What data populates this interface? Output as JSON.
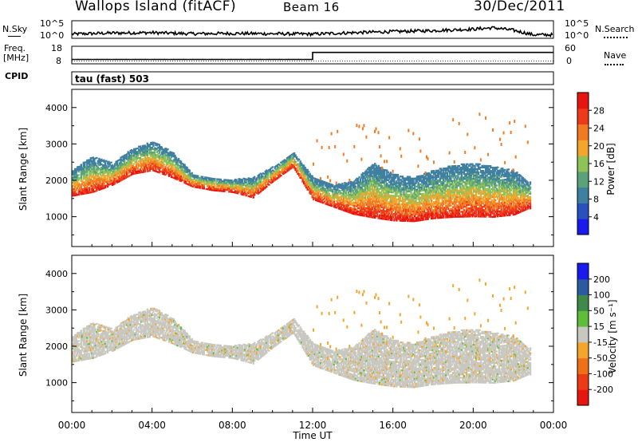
{
  "header": {
    "station": "Wallops Island (fitACF)",
    "beam": "Beam 16",
    "date": "30/Dec/2011"
  },
  "top_panels": {
    "nsky_label": "N.Sky",
    "nsky_ticks": [
      "10^5",
      "10^0"
    ],
    "nsearch_label": "N.Search",
    "nsearch_ticks": [
      "10^5",
      "10^0"
    ],
    "freq_label_1": "Freq.",
    "freq_label_2": "[MHz]",
    "freq_ticks": [
      "18",
      "8"
    ],
    "nave_label": "Nave",
    "nave_ticks": [
      "60",
      "0"
    ],
    "cpid_label": "CPID",
    "cpid_value": "tau (fast) 503"
  },
  "colors": {
    "power_scale": [
      "#1a1aee",
      "#2a4fbf",
      "#3f7fa0",
      "#5aa37a",
      "#8fc257",
      "#f3a52c",
      "#f27a22",
      "#ee3a1a",
      "#e8140f"
    ],
    "velocity_scale": [
      "#1a1aee",
      "#2c5aa0",
      "#3f8a4a",
      "#5fbd3a",
      "#c8c8c0",
      "#f3a52c",
      "#f07018",
      "#ec3a14",
      "#e8140f"
    ]
  },
  "chart_data": [
    {
      "type": "heatmap",
      "panel": "power",
      "ylabel": "Slant Range [km]",
      "yticks": [
        "1000",
        "2000",
        "3000",
        "4000"
      ],
      "ylim": [
        180,
        4500
      ],
      "xlim": [
        0,
        24
      ],
      "colorbar_label": "Power [dB]",
      "colorbar_ticks": [
        "4",
        "8",
        "12",
        "16",
        "20",
        "24",
        "28"
      ],
      "colorbar_range": [
        0,
        32
      ],
      "echo_band_lower_km": [
        [
          0,
          1600
        ],
        [
          1,
          1700
        ],
        [
          2,
          1900
        ],
        [
          3,
          2200
        ],
        [
          4,
          2300
        ],
        [
          5,
          2100
        ],
        [
          6,
          1850
        ],
        [
          7,
          1750
        ],
        [
          8,
          1700
        ],
        [
          9,
          1550
        ],
        [
          10,
          2000
        ],
        [
          11,
          2400
        ],
        [
          12,
          1500
        ],
        [
          13,
          1300
        ],
        [
          14,
          1100
        ],
        [
          15,
          1000
        ],
        [
          16,
          920
        ],
        [
          17,
          900
        ],
        [
          18,
          980
        ],
        [
          19,
          1020
        ],
        [
          20,
          1030
        ],
        [
          21,
          1020
        ],
        [
          22,
          1080
        ],
        [
          22.7,
          1250
        ]
      ],
      "echo_band_upper_km": [
        [
          0,
          2300
        ],
        [
          1,
          2700
        ],
        [
          2,
          2500
        ],
        [
          3,
          2900
        ],
        [
          4,
          3100
        ],
        [
          5,
          2800
        ],
        [
          6,
          2200
        ],
        [
          7,
          2100
        ],
        [
          8,
          2050
        ],
        [
          9,
          2100
        ],
        [
          10,
          2400
        ],
        [
          11,
          2800
        ],
        [
          12,
          2100
        ],
        [
          13,
          1900
        ],
        [
          14,
          2000
        ],
        [
          15,
          2500
        ],
        [
          16,
          2200
        ],
        [
          17,
          2100
        ],
        [
          18,
          2300
        ],
        [
          19,
          2450
        ],
        [
          20,
          2500
        ],
        [
          21,
          2400
        ],
        [
          22,
          2300
        ],
        [
          22.7,
          2000
        ]
      ]
    },
    {
      "type": "heatmap",
      "panel": "velocity",
      "ylabel": "Slant Range [km]",
      "yticks": [
        "1000",
        "2000",
        "3000",
        "4000"
      ],
      "ylim": [
        180,
        4500
      ],
      "xlim": [
        0,
        24
      ],
      "xlabel": "Time UT",
      "xticks": [
        "00:00",
        "04:00",
        "08:00",
        "12:00",
        "16:00",
        "20:00",
        "00:00"
      ],
      "colorbar_label": "Velocity [m s⁻¹]",
      "colorbar_ticks": [
        "200",
        "100",
        "50",
        "15",
        "-15",
        "-50",
        "-100",
        "-200"
      ],
      "colorbar_range": [
        -250,
        250
      ]
    },
    {
      "type": "line",
      "panel": "nsky",
      "ylim": [
        0,
        5
      ],
      "xlim": [
        0,
        24
      ],
      "values": [
        [
          0,
          1.2
        ],
        [
          2,
          1.5
        ],
        [
          4,
          1.6
        ],
        [
          6,
          1.3
        ],
        [
          8,
          1.4
        ],
        [
          10,
          1.3
        ],
        [
          12,
          1.2
        ],
        [
          14,
          1.6
        ],
        [
          16,
          1.9
        ],
        [
          18,
          2.2
        ],
        [
          20,
          2.6
        ],
        [
          21,
          3.0
        ],
        [
          22,
          2.3
        ],
        [
          23,
          1.0
        ],
        [
          24,
          1.0
        ]
      ]
    },
    {
      "type": "line",
      "panel": "freq",
      "ylim": [
        8,
        18
      ],
      "xlim": [
        0,
        24
      ],
      "values": [
        [
          0,
          10.5
        ],
        [
          12,
          10.5
        ],
        [
          12,
          14.5
        ],
        [
          24,
          14.5
        ]
      ]
    }
  ]
}
